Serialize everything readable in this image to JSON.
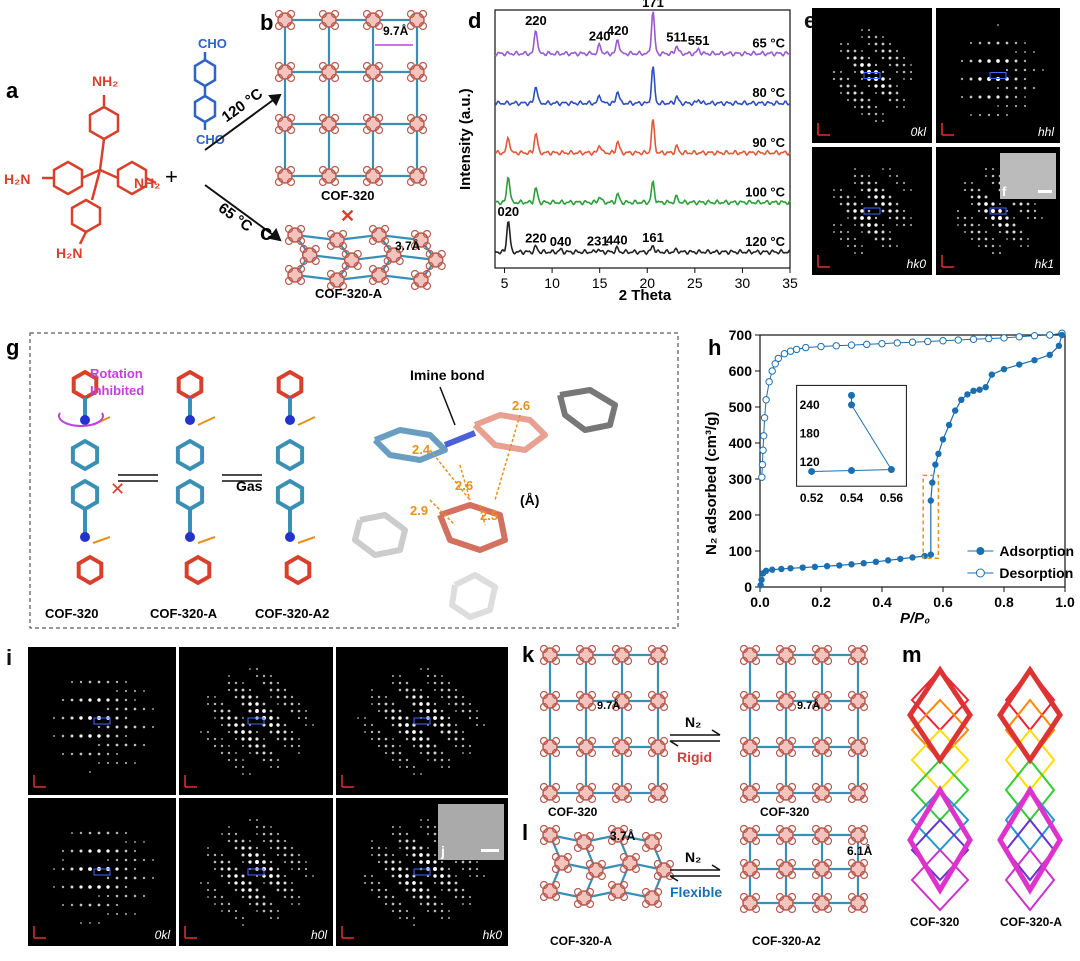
{
  "panel_labels": {
    "a": "a",
    "b": "b",
    "c": "c",
    "d": "d",
    "e": "e",
    "f": "f",
    "g": "g",
    "h": "h",
    "i": "i",
    "j": "j",
    "k": "k",
    "l": "l",
    "m": "m"
  },
  "panel_a": {
    "amine_groups": [
      "NH₂",
      "H₂N",
      "NH₂",
      "H₂N"
    ],
    "aldehyde_groups": [
      "CHO",
      "CHO"
    ],
    "plus": "+",
    "cond_high": "120 °C",
    "cond_low": "65 °C"
  },
  "panel_b": {
    "name": "COF-320",
    "distance": "9.7Å"
  },
  "panel_c": {
    "name": "COF-320-A",
    "distance": "3.7Å",
    "cross": "✕"
  },
  "chart_data": {
    "type": "line",
    "xlabel": "2 Theta",
    "ylabel": "Intensity (a.u.)",
    "xlim": [
      4,
      35
    ],
    "xticks": [
      5,
      10,
      15,
      20,
      25,
      30,
      35
    ],
    "series": [
      {
        "name": "65 °C",
        "color": "#9b59d0",
        "peaks": [
          [
            8.3,
            0.55
          ],
          [
            15.0,
            0.2
          ],
          [
            16.9,
            0.33
          ],
          [
            20.6,
            0.95
          ],
          [
            23.1,
            0.18
          ],
          [
            25.4,
            0.1
          ]
        ],
        "labels": [
          {
            "x": 8.3,
            "t": "220"
          },
          {
            "x": 15.0,
            "t": "240"
          },
          {
            "x": 16.9,
            "t": "420"
          },
          {
            "x": 20.6,
            "t": "171"
          },
          {
            "x": 23.1,
            "t": "511"
          },
          {
            "x": 25.4,
            "t": "551"
          }
        ]
      },
      {
        "name": "80 °C",
        "color": "#2f4fc0",
        "peaks": [
          [
            8.3,
            0.4
          ],
          [
            15.0,
            0.18
          ],
          [
            16.9,
            0.28
          ],
          [
            20.6,
            0.8
          ],
          [
            23.1,
            0.15
          ],
          [
            25.4,
            0.08
          ]
        ]
      },
      {
        "name": "90 °C",
        "color": "#e0573a",
        "peaks": [
          [
            5.4,
            0.35
          ],
          [
            8.3,
            0.45
          ],
          [
            15.0,
            0.18
          ],
          [
            16.9,
            0.26
          ],
          [
            20.6,
            0.72
          ],
          [
            23.1,
            0.14
          ]
        ]
      },
      {
        "name": "100 °C",
        "color": "#2e9e3a",
        "peaks": [
          [
            5.4,
            0.6
          ],
          [
            8.3,
            0.32
          ],
          [
            15.0,
            0.13
          ],
          [
            16.9,
            0.18
          ],
          [
            20.6,
            0.45
          ],
          [
            23.1,
            0.12
          ]
        ]
      },
      {
        "name": "120 °C",
        "color": "#222222",
        "peaks": [
          [
            5.4,
            0.72
          ],
          [
            8.3,
            0.12
          ],
          [
            10.9,
            0.05
          ],
          [
            14.8,
            0.06
          ],
          [
            16.8,
            0.08
          ],
          [
            20.6,
            0.14
          ],
          [
            23.1,
            0.05
          ]
        ],
        "labels": [
          {
            "x": 5.4,
            "t": "020"
          },
          {
            "x": 8.3,
            "t": "220"
          },
          {
            "x": 10.9,
            "t": "040"
          },
          {
            "x": 14.8,
            "t": "231"
          },
          {
            "x": 16.8,
            "t": "440"
          },
          {
            "x": 20.6,
            "t": "161"
          }
        ]
      }
    ]
  },
  "chart_h": {
    "type": "scatter",
    "xlabel": "P/P₀",
    "ylabel": "N₂ adsorbed (cm³/g)",
    "xlim": [
      0,
      1.0
    ],
    "ylim": [
      0,
      700
    ],
    "xticks": [
      "0.0",
      "0.2",
      "0.4",
      "0.6",
      "0.8",
      "1.0"
    ],
    "yticks": [
      0,
      100,
      200,
      300,
      400,
      500,
      600,
      700
    ],
    "legend": [
      "Adsorption",
      "Desorption"
    ],
    "adsorption": [
      [
        0.002,
        5
      ],
      [
        0.005,
        20
      ],
      [
        0.01,
        38
      ],
      [
        0.02,
        45
      ],
      [
        0.04,
        48
      ],
      [
        0.07,
        50
      ],
      [
        0.1,
        52
      ],
      [
        0.14,
        54
      ],
      [
        0.18,
        56
      ],
      [
        0.22,
        58
      ],
      [
        0.26,
        60
      ],
      [
        0.3,
        63
      ],
      [
        0.34,
        66
      ],
      [
        0.38,
        70
      ],
      [
        0.42,
        74
      ],
      [
        0.46,
        78
      ],
      [
        0.5,
        82
      ],
      [
        0.54,
        86
      ],
      [
        0.56,
        90
      ],
      [
        0.56,
        240
      ],
      [
        0.565,
        290
      ],
      [
        0.575,
        340
      ],
      [
        0.585,
        370
      ],
      [
        0.6,
        410
      ],
      [
        0.62,
        450
      ],
      [
        0.64,
        490
      ],
      [
        0.66,
        520
      ],
      [
        0.68,
        535
      ],
      [
        0.7,
        545
      ],
      [
        0.72,
        548
      ],
      [
        0.74,
        555
      ],
      [
        0.76,
        590
      ],
      [
        0.8,
        605
      ],
      [
        0.85,
        618
      ],
      [
        0.9,
        630
      ],
      [
        0.95,
        645
      ],
      [
        0.98,
        670
      ],
      [
        0.99,
        700
      ]
    ],
    "desorption": [
      [
        0.99,
        705
      ],
      [
        0.95,
        700
      ],
      [
        0.9,
        698
      ],
      [
        0.85,
        695
      ],
      [
        0.8,
        692
      ],
      [
        0.75,
        690
      ],
      [
        0.7,
        688
      ],
      [
        0.65,
        686
      ],
      [
        0.6,
        684
      ],
      [
        0.55,
        682
      ],
      [
        0.5,
        680
      ],
      [
        0.45,
        678
      ],
      [
        0.4,
        676
      ],
      [
        0.35,
        674
      ],
      [
        0.3,
        672
      ],
      [
        0.25,
        670
      ],
      [
        0.2,
        668
      ],
      [
        0.15,
        665
      ],
      [
        0.12,
        660
      ],
      [
        0.1,
        655
      ],
      [
        0.08,
        648
      ],
      [
        0.06,
        635
      ],
      [
        0.05,
        620
      ],
      [
        0.04,
        600
      ],
      [
        0.03,
        570
      ],
      [
        0.02,
        520
      ],
      [
        0.015,
        470
      ],
      [
        0.012,
        420
      ],
      [
        0.01,
        380
      ],
      [
        0.008,
        340
      ],
      [
        0.006,
        305
      ]
    ],
    "inset": {
      "xticks": [
        "0.52",
        "0.54",
        "0.56"
      ],
      "yticks": [
        "120",
        "180",
        "240"
      ],
      "points": [
        [
          0.52,
          100
        ],
        [
          0.54,
          102
        ],
        [
          0.56,
          104
        ],
        [
          0.54,
          240
        ],
        [
          0.54,
          260
        ]
      ]
    }
  },
  "panel_e": {
    "labels": [
      "0kl",
      "hhl",
      "hk0",
      "hk1"
    ]
  },
  "panel_g": {
    "rotation_label": "Rotation\nInhibited",
    "gas_label": "Gas",
    "names": [
      "COF-320",
      "COF-320-A",
      "COF-320-A2"
    ],
    "imine_label": "Imine bond",
    "distances": [
      "2.4",
      "2.6",
      "2.6",
      "2.9",
      "2.5"
    ],
    "unit": "(Å)"
  },
  "panel_i": {
    "labels": [
      "0kl",
      "h0l",
      "hk0"
    ]
  },
  "panel_k": {
    "left": "COF-320",
    "right": "COF-320",
    "d_left": "9.7Å",
    "d_right": "9.7Å",
    "gas": "N₂",
    "mode": "Rigid"
  },
  "panel_l": {
    "left": "COF-320-A",
    "right": "COF-320-A2",
    "d_left": "3.7Å",
    "d_right": "6.1Å",
    "gas": "N₂",
    "mode": "Flexible"
  },
  "panel_m": {
    "left": "COF-320",
    "right": "COF-320-A"
  },
  "colors": {
    "red": "#d9402b",
    "blue": "#2e63c8",
    "purple": "#c040e0",
    "orange": "#e8901a",
    "rigid": "#d04040",
    "flexible": "#1b6fb0"
  }
}
